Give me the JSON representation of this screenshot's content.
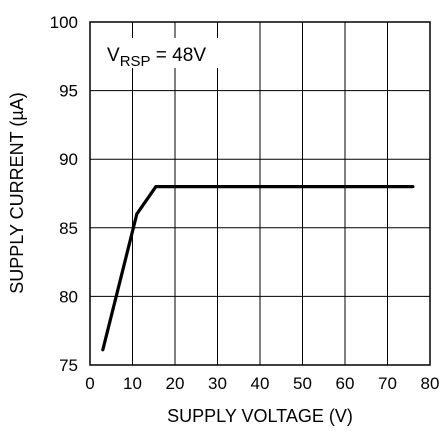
{
  "chart_data": {
    "type": "line",
    "title": "",
    "xlabel": "SUPPLY VOLTAGE (V)",
    "ylabel": "SUPPLY CURRENT (µA)",
    "xlim": [
      0,
      80
    ],
    "ylim": [
      75,
      100
    ],
    "x_ticks": [
      0,
      10,
      20,
      30,
      40,
      50,
      60,
      70,
      80
    ],
    "y_ticks": [
      75,
      80,
      85,
      90,
      95,
      100
    ],
    "grid": true,
    "annotation": {
      "main": "V",
      "sub": "RSP",
      "rest": " = 48V"
    },
    "series": [
      {
        "color": "#000000",
        "x": [
          3,
          11,
          15.5,
          76
        ],
        "y": [
          76.1,
          86,
          88,
          88
        ]
      }
    ]
  }
}
